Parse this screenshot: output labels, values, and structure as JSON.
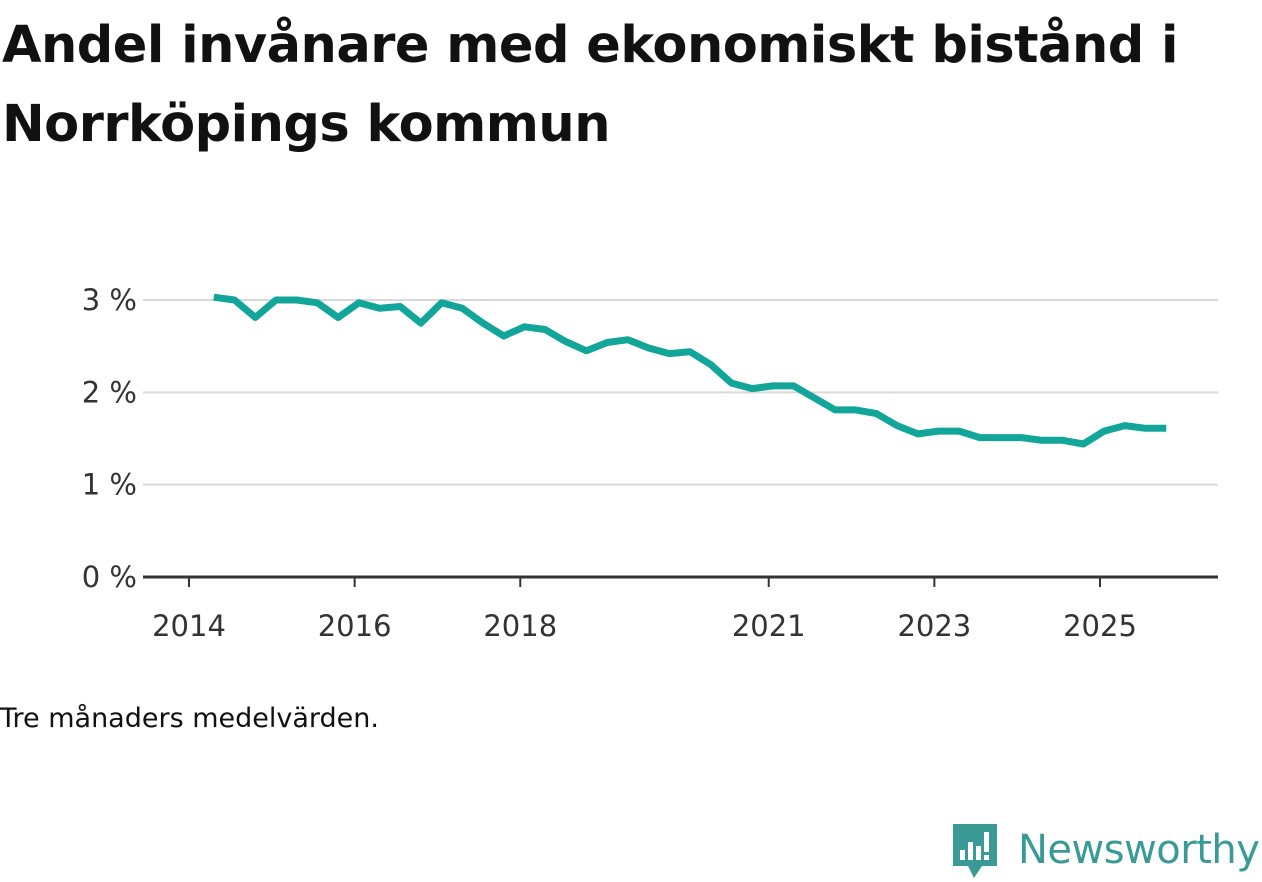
{
  "title": "Andel invånare med ekonomiskt bistånd i Norrköpings kommun",
  "caption": "Tre månaders medelvärden.",
  "brand": {
    "name": "Newsworthy",
    "icon": "newsworthy-logo-icon",
    "color": "#3a9a95"
  },
  "colors": {
    "line": "#12a69a",
    "grid": "#d9d9d9",
    "axis": "#333333",
    "text": "#333333"
  },
  "chart_data": {
    "type": "line",
    "title": "Andel invånare med ekonomiskt bistånd i Norrköpings kommun",
    "xlabel": "",
    "ylabel": "",
    "ylim": [
      0,
      3.0
    ],
    "xlim": [
      2014.0,
      2026.6
    ],
    "yticks": [
      {
        "value": 0,
        "label": "0 %"
      },
      {
        "value": 1,
        "label": "1 %"
      },
      {
        "value": 2,
        "label": "2 %"
      },
      {
        "value": 3,
        "label": "3 %"
      }
    ],
    "xticks": [
      {
        "value": 2014.0,
        "label": "2014"
      },
      {
        "value": 2016.0,
        "label": "2016"
      },
      {
        "value": 2018.0,
        "label": "2018"
      },
      {
        "value": 2021.0,
        "label": "2021"
      },
      {
        "value": 2023.0,
        "label": "2023"
      },
      {
        "value": 2025.0,
        "label": "2025"
      }
    ],
    "series": [
      {
        "name": "Andel invånare med ekonomiskt bistånd",
        "x": [
          2014.3,
          2014.55,
          2014.8,
          2015.05,
          2015.3,
          2015.55,
          2015.8,
          2016.05,
          2016.3,
          2016.55,
          2016.8,
          2017.05,
          2017.3,
          2017.55,
          2017.8,
          2018.05,
          2018.3,
          2018.55,
          2018.8,
          2019.05,
          2019.3,
          2019.55,
          2019.8,
          2020.05,
          2020.3,
          2020.55,
          2020.8,
          2021.05,
          2021.3,
          2021.55,
          2021.8,
          2022.05,
          2022.3,
          2022.55,
          2022.8,
          2023.05,
          2023.3,
          2023.55,
          2023.8,
          2024.05,
          2024.3,
          2024.55,
          2024.8,
          2025.05,
          2025.3,
          2025.55,
          2025.8
        ],
        "values": [
          3.03,
          3.0,
          2.81,
          3.0,
          3.0,
          2.97,
          2.81,
          2.97,
          2.91,
          2.93,
          2.75,
          2.97,
          2.91,
          2.75,
          2.61,
          2.71,
          2.68,
          2.55,
          2.45,
          2.54,
          2.57,
          2.48,
          2.42,
          2.44,
          2.3,
          2.1,
          2.04,
          2.07,
          2.07,
          1.94,
          1.81,
          1.81,
          1.77,
          1.64,
          1.55,
          1.58,
          1.58,
          1.51,
          1.51,
          1.51,
          1.48,
          1.48,
          1.44,
          1.58,
          1.64,
          1.61,
          1.61
        ]
      }
    ]
  }
}
